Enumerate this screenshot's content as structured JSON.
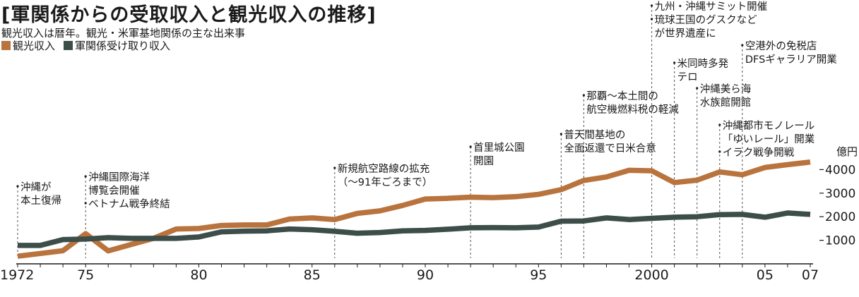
{
  "chart_data": {
    "type": "line",
    "title": "[軍関係からの受取収入と観光収入の推移]",
    "subtitle": "観光収入は暦年。観光・米軍基地関係の主な出来事",
    "ylabel": "億円",
    "ylim": [
      0,
      4500
    ],
    "xlim": [
      1972,
      2007
    ],
    "grid": false,
    "legend_position": "top-left",
    "x_ticks": [
      {
        "value": 1972,
        "label": "1972"
      },
      {
        "value": 1975,
        "label": "75"
      },
      {
        "value": 1980,
        "label": "80"
      },
      {
        "value": 1985,
        "label": "85"
      },
      {
        "value": 1990,
        "label": "90"
      },
      {
        "value": 1995,
        "label": "95"
      },
      {
        "value": 2000,
        "label": "2000"
      },
      {
        "value": 2005,
        "label": "05"
      },
      {
        "value": 2007,
        "label": "07"
      }
    ],
    "y_ticks": [
      {
        "value": 1000,
        "label": "1000"
      },
      {
        "value": 2000,
        "label": "2000"
      },
      {
        "value": 3000,
        "label": "3000"
      },
      {
        "value": 4000,
        "label": "4000"
      }
    ],
    "x": [
      1972,
      1973,
      1974,
      1975,
      1976,
      1977,
      1978,
      1979,
      1980,
      1981,
      1982,
      1983,
      1984,
      1985,
      1986,
      1987,
      1988,
      1989,
      1990,
      1991,
      1992,
      1993,
      1994,
      1995,
      1996,
      1997,
      1998,
      1999,
      2000,
      2001,
      2002,
      2003,
      2004,
      2005,
      2006,
      2007
    ],
    "series": [
      {
        "name": "観光収入",
        "color": "#b9733d",
        "values": [
          324,
          440,
          556,
          1280,
          550,
          820,
          1080,
          1480,
          1500,
          1630,
          1650,
          1650,
          1900,
          1950,
          1880,
          2140,
          2250,
          2480,
          2750,
          2780,
          2830,
          2810,
          2850,
          2950,
          3150,
          3540,
          3690,
          3970,
          3950,
          3450,
          3550,
          3900,
          3780,
          4090,
          4210,
          4320
        ]
      },
      {
        "name": "軍関係受け取り収入",
        "color": "#3d4e4a",
        "values": [
          780,
          780,
          1030,
          1050,
          1110,
          1080,
          1080,
          1080,
          1140,
          1360,
          1390,
          1400,
          1480,
          1450,
          1380,
          1300,
          1330,
          1400,
          1420,
          1470,
          1530,
          1540,
          1530,
          1560,
          1810,
          1820,
          1950,
          1880,
          1930,
          1980,
          2000,
          2090,
          2100,
          1980,
          2160,
          2100
        ]
      }
    ],
    "annotations": [
      {
        "year": 1972,
        "lines": [
          "沖縄が",
          "本土復帰"
        ]
      },
      {
        "year": 1975,
        "lines": [
          "沖縄国際海洋",
          "博覧会開催",
          "ベトナム戦争終結"
        ],
        "bullets": [
          0,
          2
        ]
      },
      {
        "year": 1986,
        "lines": [
          "新規航空路線の拡充",
          "（〜91年ごろまで）"
        ]
      },
      {
        "year": 1992,
        "lines": [
          "首里城公園",
          "開園"
        ]
      },
      {
        "year": 1996,
        "lines": [
          "普天間基地の",
          "全面返還で日米合意"
        ]
      },
      {
        "year": 1997,
        "lines": [
          "那覇〜本土間の",
          "航空機燃料税の軽減"
        ]
      },
      {
        "year": 2000,
        "lines": [
          "九州・沖縄サミット開催",
          "琉球王国のグスクなど",
          "が世界遺産に"
        ],
        "bullets": [
          0,
          1
        ]
      },
      {
        "year": 2001,
        "lines": [
          "米同時多発",
          "テロ"
        ]
      },
      {
        "year": 2002,
        "lines": [
          "沖縄美ら海",
          "水族館開館"
        ]
      },
      {
        "year": 2003,
        "lines": [
          "沖縄都市モノレール",
          "「ゆいレール」開業",
          "イラク戦争開戦"
        ],
        "bullets": [
          0,
          2
        ]
      },
      {
        "year": 2004,
        "lines": [
          "空港外の免税店",
          "DFSギャラリア開業"
        ]
      }
    ]
  }
}
